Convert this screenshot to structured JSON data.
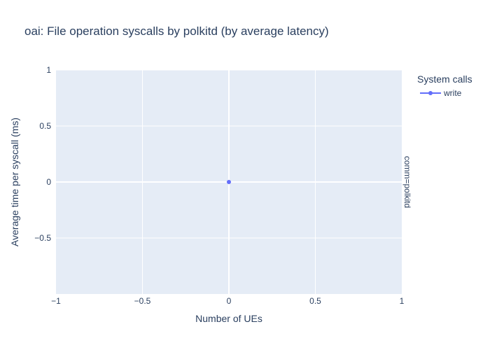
{
  "chart_data": {
    "type": "scatter",
    "title": "oai: File operation syscalls by polkitd (by average latency)",
    "xlabel": "Number of UEs",
    "ylabel": "Average time per syscall (ms)",
    "xlim": [
      -1,
      1
    ],
    "ylim": [
      -1,
      1
    ],
    "x_ticks": [
      -1,
      -0.5,
      0,
      0.5,
      1
    ],
    "x_tick_labels": [
      "−1",
      "−0.5",
      "0",
      "0.5",
      "1"
    ],
    "y_ticks": [
      -0.5,
      0,
      0.5,
      1
    ],
    "y_tick_labels": [
      "−0.5",
      "0",
      "0.5",
      "1"
    ],
    "grid": true,
    "legend": {
      "title": "System calls",
      "position": "right"
    },
    "facet_label": "comm=polkitd",
    "series": [
      {
        "name": "write",
        "color": "#636efa",
        "mode": "lines+markers",
        "points": [
          {
            "x": 0,
            "y": 0
          }
        ]
      }
    ]
  },
  "colors": {
    "plot_bg": "#e5ecf6",
    "grid": "#ffffff",
    "text": "#2a3f5f"
  }
}
